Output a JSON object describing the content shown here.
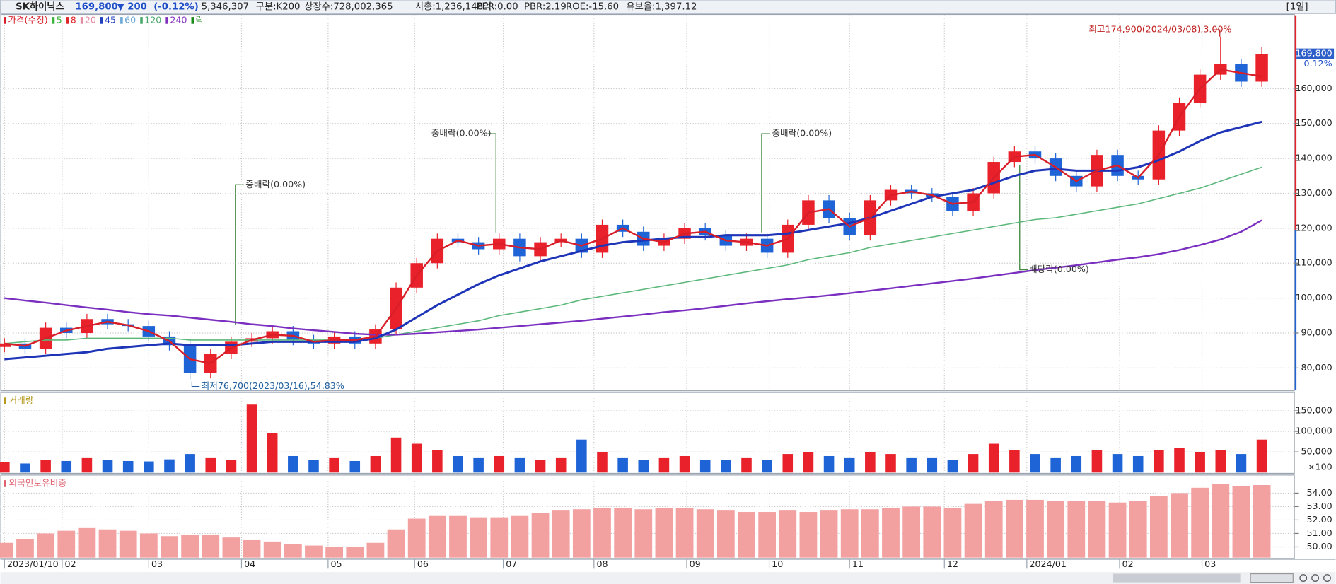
{
  "header": {
    "name": "SK하이닉스",
    "price": "169,800",
    "change": "▼ 200",
    "change_pct": "(-0.12%)",
    "volume": "5,346,307",
    "items": [
      "구분:K200",
      "상장수:728,002,365",
      "시총:1,236,148억",
      "PER:0.00",
      "PBR:2.19",
      "ROE:-15.60",
      "유보율:1,397.12"
    ],
    "period": "[1일]",
    "last_change": "-0.12%"
  },
  "chart_data": [
    {
      "type": "candlestick",
      "up_color": "#e8212a",
      "down_color": "#1f64d6",
      "open": [
        86000,
        87000,
        85500,
        91500,
        90000,
        94000,
        92500,
        92000,
        89000,
        86500,
        78500,
        84000,
        87500,
        88500,
        90500,
        88000,
        87000,
        89000,
        87000,
        91000,
        103000,
        110000,
        117000,
        116000,
        114000,
        117000,
        112000,
        116000,
        117000,
        113000,
        121000,
        119000,
        115000,
        117000,
        120000,
        118000,
        115000,
        117000,
        113000,
        121000,
        128000,
        123000,
        118000,
        128000,
        131000,
        130000,
        129000,
        125000,
        130000,
        139000,
        142000,
        140000,
        135000,
        132000,
        141000,
        135000,
        134000,
        148000,
        156000,
        164000,
        167000,
        162000
      ],
      "high": [
        88500,
        88500,
        93000,
        93000,
        95500,
        95500,
        94000,
        93500,
        90500,
        88000,
        85500,
        89000,
        90000,
        92000,
        92000,
        89500,
        90500,
        90500,
        92500,
        104500,
        111500,
        118500,
        118500,
        117500,
        118500,
        118500,
        117500,
        118500,
        118500,
        122500,
        122500,
        120500,
        118500,
        121500,
        121500,
        119500,
        118500,
        118500,
        122500,
        129500,
        129500,
        124500,
        129500,
        132500,
        132500,
        131500,
        130500,
        131500,
        140500,
        143500,
        143500,
        141500,
        136500,
        142500,
        142500,
        136500,
        149500,
        157500,
        165500,
        174900,
        168500,
        172000
      ],
      "low": [
        84500,
        84000,
        84000,
        88500,
        88500,
        91000,
        90500,
        87500,
        85000,
        76700,
        77000,
        82500,
        86000,
        87000,
        86500,
        85500,
        85500,
        85500,
        85500,
        89500,
        101500,
        108500,
        114500,
        112500,
        112500,
        110500,
        110500,
        114500,
        111500,
        111500,
        117500,
        113500,
        113500,
        115500,
        116500,
        113500,
        113500,
        111500,
        111500,
        119500,
        121500,
        116500,
        116500,
        126500,
        128500,
        127500,
        123500,
        123500,
        128500,
        137500,
        138500,
        133500,
        130500,
        130500,
        133500,
        132500,
        132500,
        146500,
        154500,
        162500,
        160500,
        160500
      ],
      "close": [
        87000,
        85500,
        91500,
        90000,
        94000,
        92500,
        92000,
        89000,
        86500,
        78500,
        84000,
        87500,
        88500,
        90500,
        88000,
        87000,
        89000,
        87000,
        91000,
        103000,
        110000,
        117000,
        116000,
        114000,
        117000,
        112000,
        116000,
        117000,
        113000,
        121000,
        119000,
        115000,
        117000,
        120000,
        118000,
        115000,
        117000,
        113000,
        121000,
        128000,
        123000,
        118000,
        128000,
        131000,
        130000,
        129000,
        125000,
        130000,
        139000,
        142000,
        140000,
        135000,
        132000,
        141000,
        135000,
        134000,
        148000,
        156000,
        164000,
        167000,
        162000,
        169800
      ],
      "moving_averages": [
        {
          "color": "#5cb87a",
          "width": 1.3,
          "values": [
            87000,
            87500,
            88000,
            88000,
            88500,
            88500,
            88500,
            88500,
            88500,
            88000,
            88000,
            88000,
            88000,
            88000,
            88000,
            88000,
            88000,
            88000,
            88500,
            89500,
            90500,
            91500,
            92500,
            93500,
            95000,
            96000,
            97000,
            98000,
            99500,
            100500,
            101500,
            102500,
            103500,
            104500,
            105500,
            106500,
            107500,
            108500,
            109500,
            111000,
            112000,
            113000,
            114500,
            115500,
            116500,
            117500,
            118500,
            119500,
            120500,
            121500,
            122500,
            123000,
            124000,
            125000,
            126000,
            127000,
            128500,
            130000,
            131500,
            133500,
            135500,
            137500
          ]
        },
        {
          "color": "#7a2fc0",
          "width": 2,
          "values": [
            100000,
            99300,
            98700,
            98000,
            97300,
            96700,
            96000,
            95400,
            95000,
            94400,
            93800,
            93200,
            92500,
            92000,
            91300,
            90800,
            90300,
            89800,
            89500,
            89500,
            89800,
            90200,
            90600,
            91000,
            91500,
            92000,
            92500,
            93000,
            93500,
            94100,
            94700,
            95300,
            96000,
            96500,
            97100,
            97800,
            98500,
            99100,
            99700,
            100200,
            100800,
            101400,
            102100,
            102800,
            103500,
            104200,
            104900,
            105600,
            106400,
            107200,
            108000,
            108700,
            109400,
            110200,
            111000,
            111700,
            112600,
            113800,
            115200,
            116800,
            119000,
            122300
          ]
        },
        {
          "color": "#1f35b8",
          "width": 2.5,
          "values": [
            82500,
            83000,
            83500,
            84000,
            84500,
            85500,
            86000,
            86500,
            87000,
            86500,
            86500,
            86500,
            87000,
            87500,
            87500,
            87500,
            87500,
            87500,
            88500,
            91000,
            94500,
            98000,
            101000,
            104000,
            106500,
            108500,
            110500,
            112000,
            113500,
            115000,
            116000,
            116500,
            117000,
            117500,
            117500,
            118000,
            118000,
            118000,
            118500,
            119500,
            120500,
            121500,
            123000,
            125000,
            127000,
            129000,
            130000,
            131000,
            133000,
            135000,
            136500,
            137000,
            136500,
            136500,
            136500,
            137500,
            139500,
            142000,
            145000,
            147500,
            149000,
            150500
          ]
        },
        {
          "color": "#d81e28",
          "width": 2,
          "values": [
            87000,
            86300,
            88500,
            90700,
            92000,
            93200,
            92200,
            90500,
            87700,
            82500,
            81300,
            85700,
            88000,
            89500,
            89200,
            87500,
            88000,
            88000,
            89000,
            97000,
            106500,
            113500,
            116500,
            115000,
            115500,
            114500,
            114000,
            116500,
            115000,
            117000,
            120000,
            117000,
            116000,
            118500,
            119000,
            116500,
            116000,
            115000,
            117000,
            124500,
            125500,
            120500,
            123000,
            129500,
            130500,
            129500,
            127000,
            127500,
            134500,
            140500,
            141000,
            137500,
            133500,
            136500,
            138000,
            134500,
            141000,
            152000,
            160000,
            165500,
            164500,
            163500
          ]
        }
      ],
      "legend": [
        {
          "label": "가격(수정)",
          "color": "#d81e28"
        },
        {
          "label": "5",
          "color": "#3cb43c"
        },
        {
          "label": "8",
          "color": "#e0262b"
        },
        {
          "label": "20",
          "color": "#e68aa0"
        },
        {
          "label": "45",
          "color": "#2040c0"
        },
        {
          "label": "60",
          "color": "#6aa8d8"
        },
        {
          "label": "120",
          "color": "#4aa86a"
        },
        {
          "label": "240",
          "color": "#8030c0"
        },
        {
          "label": "락",
          "color": "#1a8a1a"
        }
      ],
      "annotations": [
        "최고174,900(2024/03/08),3.00%",
        "최저76,700(2023/03/16),54.83%",
        "중배락(0.00%)",
        "중배락(0.00%)",
        "중배락(0.00%)",
        "배당락(0.00%)"
      ],
      "ylim": [
        73700,
        181000
      ],
      "yticks": [
        {
          "value": 80000,
          "label": "80,000"
        },
        {
          "value": 90000,
          "label": "90,000"
        },
        {
          "value": 100000,
          "label": "100,000"
        },
        {
          "value": 110000,
          "label": "110,000"
        },
        {
          "value": 120000,
          "label": "120,000"
        },
        {
          "value": 130000,
          "label": "130,000"
        },
        {
          "value": 140000,
          "label": "140,000"
        },
        {
          "value": 150000,
          "label": "150,000"
        },
        {
          "value": 160000,
          "label": "160,000"
        }
      ],
      "xlim": [
        -0.2,
        62.6
      ],
      "xticks": [
        {
          "value": 0,
          "label": "2023/01/10"
        },
        {
          "value": 2.8,
          "label": "02"
        },
        {
          "value": 7.0,
          "label": "03"
        },
        {
          "value": 11.5,
          "label": "04"
        },
        {
          "value": 15.7,
          "label": "05"
        },
        {
          "value": 19.9,
          "label": "06"
        },
        {
          "value": 24.2,
          "label": "07"
        },
        {
          "value": 28.6,
          "label": "08"
        },
        {
          "value": 33.1,
          "label": "09"
        },
        {
          "value": 37.1,
          "label": "10"
        },
        {
          "value": 41.0,
          "label": "11"
        },
        {
          "value": 45.6,
          "label": "12"
        },
        {
          "value": 49.6,
          "label": "2024/01"
        },
        {
          "value": 54.1,
          "label": "02"
        },
        {
          "value": 58.1,
          "label": "03"
        }
      ],
      "grid": true
    },
    {
      "type": "bar",
      "title": "거래량",
      "title_color": "#b59a1e",
      "unit": "×100",
      "values": [
        25000,
        22000,
        30000,
        28000,
        35000,
        30000,
        28000,
        27000,
        32000,
        45000,
        35000,
        30000,
        165000,
        95000,
        40000,
        30000,
        35000,
        28000,
        40000,
        85000,
        70000,
        55000,
        40000,
        35000,
        40000,
        35000,
        30000,
        35000,
        80000,
        50000,
        35000,
        30000,
        35000,
        40000,
        30000,
        30000,
        35000,
        30000,
        45000,
        50000,
        40000,
        35000,
        50000,
        45000,
        35000,
        35000,
        30000,
        45000,
        70000,
        55000,
        45000,
        35000,
        40000,
        55000,
        45000,
        40000,
        55000,
        60000,
        50000,
        55000,
        45000,
        80000
      ],
      "ylim": [
        0,
        180000
      ],
      "yticks": [
        {
          "value": 50000,
          "label": "50,000"
        },
        {
          "value": 100000,
          "label": "100,000"
        },
        {
          "value": 150000,
          "label": "150,000"
        }
      ],
      "grid": true
    },
    {
      "type": "bar",
      "title": "외국인보유비중",
      "title_color": "#e06070",
      "color": "#f3a0a0",
      "values": [
        50.3,
        50.6,
        51.0,
        51.2,
        51.4,
        51.3,
        51.2,
        51.0,
        50.8,
        50.9,
        50.9,
        50.7,
        50.5,
        50.4,
        50.2,
        50.1,
        50.0,
        50.0,
        50.3,
        51.3,
        52.1,
        52.3,
        52.3,
        52.2,
        52.2,
        52.3,
        52.5,
        52.7,
        52.8,
        52.9,
        52.9,
        52.8,
        52.9,
        52.9,
        52.8,
        52.7,
        52.6,
        52.6,
        52.7,
        52.6,
        52.7,
        52.8,
        52.8,
        52.9,
        53.0,
        53.0,
        52.9,
        53.2,
        53.4,
        53.5,
        53.5,
        53.4,
        53.4,
        53.4,
        53.3,
        53.4,
        53.8,
        54.0,
        54.4,
        54.7,
        54.5,
        54.6
      ],
      "ylim": [
        49.2,
        54.9
      ],
      "yticks": [
        {
          "value": 50,
          "label": "50.00"
        },
        {
          "value": 51,
          "label": "51.00"
        },
        {
          "value": 52,
          "label": "52.00"
        },
        {
          "value": 53,
          "label": "53.00"
        },
        {
          "value": 54,
          "label": "54.00"
        }
      ],
      "grid": true
    }
  ]
}
